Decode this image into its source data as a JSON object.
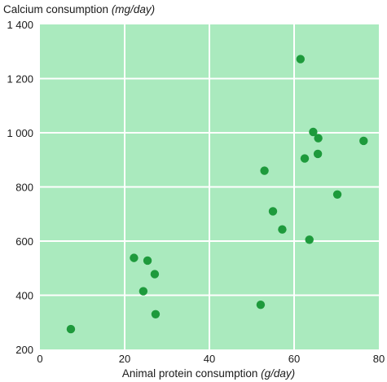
{
  "chart_data": {
    "type": "scatter",
    "ylabel_text": "Calcium consumption ",
    "ylabel_unit": "(mg/day)",
    "xlabel_text": "Animal protein consumption ",
    "xlabel_unit": "(g/day)",
    "xlim": [
      0,
      80
    ],
    "ylim": [
      200,
      1400
    ],
    "x_ticks": [
      0,
      20,
      40,
      60,
      80
    ],
    "y_ticks": [
      200,
      400,
      600,
      800,
      1000,
      1200,
      1400
    ],
    "x_tick_labels": [
      "0",
      "20",
      "40",
      "60",
      "80"
    ],
    "y_tick_labels": [
      "200",
      "400",
      "600",
      "800",
      "1 000",
      "1 200",
      "1 400"
    ],
    "grid": true,
    "colors": {
      "plot_background": "#aaeabe",
      "gridline": "#ffffff",
      "point": "#1e9a3c"
    },
    "points": [
      {
        "x": 7.3,
        "y": 275
      },
      {
        "x": 22.2,
        "y": 538
      },
      {
        "x": 25.4,
        "y": 528
      },
      {
        "x": 27.1,
        "y": 478
      },
      {
        "x": 24.4,
        "y": 415
      },
      {
        "x": 27.3,
        "y": 330
      },
      {
        "x": 52.1,
        "y": 365
      },
      {
        "x": 53.0,
        "y": 860
      },
      {
        "x": 55.0,
        "y": 710
      },
      {
        "x": 57.2,
        "y": 643
      },
      {
        "x": 61.5,
        "y": 1272
      },
      {
        "x": 62.5,
        "y": 905
      },
      {
        "x": 63.6,
        "y": 605
      },
      {
        "x": 64.5,
        "y": 1003
      },
      {
        "x": 65.7,
        "y": 980
      },
      {
        "x": 65.6,
        "y": 922
      },
      {
        "x": 70.2,
        "y": 772
      },
      {
        "x": 76.4,
        "y": 970
      }
    ]
  }
}
